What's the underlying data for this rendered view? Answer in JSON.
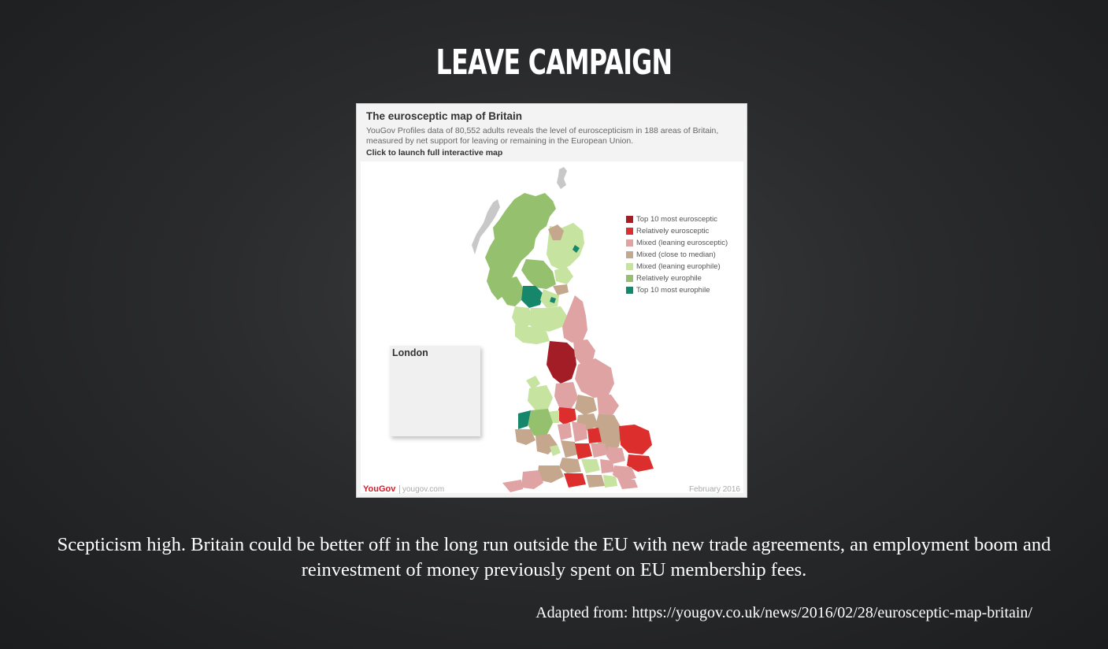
{
  "slide": {
    "title": "LEAVE CAMPAIGN",
    "caption": "Scepticism high. Britain could be better off in the long run outside the EU with new trade agreements, an employment boom and reinvestment of money previously spent on EU membership fees.",
    "source": "Adapted from: https://yougov.co.uk/news/2016/02/28/eurosceptic-map-britain/"
  },
  "map": {
    "title": "The eurosceptic map of Britain",
    "description": "YouGov Profiles data of 80,552 adults reveals the level of euroscepticism in 188 areas of Britain, measured by net support for leaving or remaining in the European Union.",
    "link": "Click to launch full interactive map",
    "inset_title": "London",
    "legend": [
      {
        "label": "Top 10 most eurosceptic",
        "color": "#a31d27"
      },
      {
        "label": "Relatively eurosceptic",
        "color": "#dd2e2e"
      },
      {
        "label": "Mixed (leaning eurosceptic)",
        "color": "#e0a3a3"
      },
      {
        "label": "Mixed (close to median)",
        "color": "#c4a78d"
      },
      {
        "label": "Mixed (leaning europhile)",
        "color": "#c6e3a0"
      },
      {
        "label": "Relatively europhile",
        "color": "#95c06e"
      },
      {
        "label": "Top 10 most europhile",
        "color": "#16876a"
      }
    ],
    "no_data_color": "#c8c8c8",
    "footer": {
      "brand": "YouGov",
      "url": "yougov.com",
      "date": "February 2016"
    }
  }
}
